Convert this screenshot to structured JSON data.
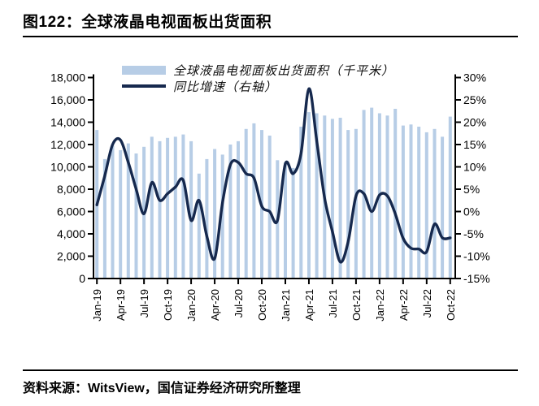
{
  "figure": {
    "title": "图122：全球液晶电视面板出货面积",
    "source": "资料来源：WitsView，国信证券经济研究所整理"
  },
  "chart_data": {
    "type": "bar",
    "subtype": "bar+line dual axis",
    "categories": [
      "Jan-19",
      "Feb-19",
      "Mar-19",
      "Apr-19",
      "May-19",
      "Jun-19",
      "Jul-19",
      "Aug-19",
      "Sep-19",
      "Oct-19",
      "Nov-19",
      "Dec-19",
      "Jan-20",
      "Feb-20",
      "Mar-20",
      "Apr-20",
      "May-20",
      "Jun-20",
      "Jul-20",
      "Aug-20",
      "Sep-20",
      "Oct-20",
      "Nov-20",
      "Dec-20",
      "Jan-21",
      "Feb-21",
      "Mar-21",
      "Apr-21",
      "May-21",
      "Jun-21",
      "Jul-21",
      "Aug-21",
      "Sep-21",
      "Oct-21",
      "Nov-21",
      "Dec-21",
      "Jan-22",
      "Feb-22",
      "Mar-22",
      "Apr-22",
      "May-22",
      "Jun-22",
      "Jul-22",
      "Aug-22",
      "Sep-22",
      "Oct-22"
    ],
    "x_label_every": 3,
    "series": [
      {
        "name": "全球液晶电视面板出货面积（千平米）",
        "type": "bar",
        "axis": "left",
        "color": "#b7cde6",
        "values": [
          13300,
          10700,
          11900,
          11500,
          12100,
          11200,
          11800,
          12700,
          12300,
          12600,
          12700,
          12900,
          12300,
          9400,
          10700,
          11600,
          11100,
          12000,
          12300,
          13400,
          13900,
          13300,
          12800,
          10600,
          10400,
          9900,
          13600,
          14900,
          14800,
          14600,
          14300,
          14400,
          13300,
          13400,
          15100,
          15300,
          14800,
          14600,
          15200,
          13700,
          13800,
          13600,
          13100,
          13400,
          12700,
          14500
        ]
      },
      {
        "name": "同比增速（右轴）",
        "type": "line",
        "axis": "right",
        "color": "#16294e",
        "values_pct": [
          1.5,
          8.0,
          15.0,
          16.0,
          11.0,
          5.0,
          -0.5,
          6.5,
          2.5,
          4.0,
          5.5,
          7.0,
          -2.0,
          2.5,
          -5.5,
          -10.5,
          2.0,
          10.5,
          11.0,
          8.5,
          7.5,
          1.2,
          0.0,
          -2.0,
          10.7,
          8.5,
          13.0,
          27.5,
          15.8,
          3.0,
          -4.5,
          -11.3,
          -6.8,
          3.5,
          4.0,
          0.0,
          3.7,
          3.5,
          -0.5,
          -6.0,
          -8.2,
          -8.4,
          -9.0,
          -2.8,
          -5.9,
          -5.9
        ]
      }
    ],
    "left_axis": {
      "min": 0,
      "max": 18000,
      "step": 2000,
      "tick_labels": [
        "0",
        "2,000",
        "4,000",
        "6,000",
        "8,000",
        "10,000",
        "12,000",
        "14,000",
        "16,000",
        "18,000"
      ]
    },
    "right_axis": {
      "min": -15,
      "max": 30,
      "step": 5,
      "tick_labels": [
        "-15%",
        "-10%",
        "-5%",
        "0%",
        "5%",
        "10%",
        "15%",
        "20%",
        "25%",
        "30%"
      ]
    },
    "grid": "off",
    "legend_position": "top-center"
  }
}
